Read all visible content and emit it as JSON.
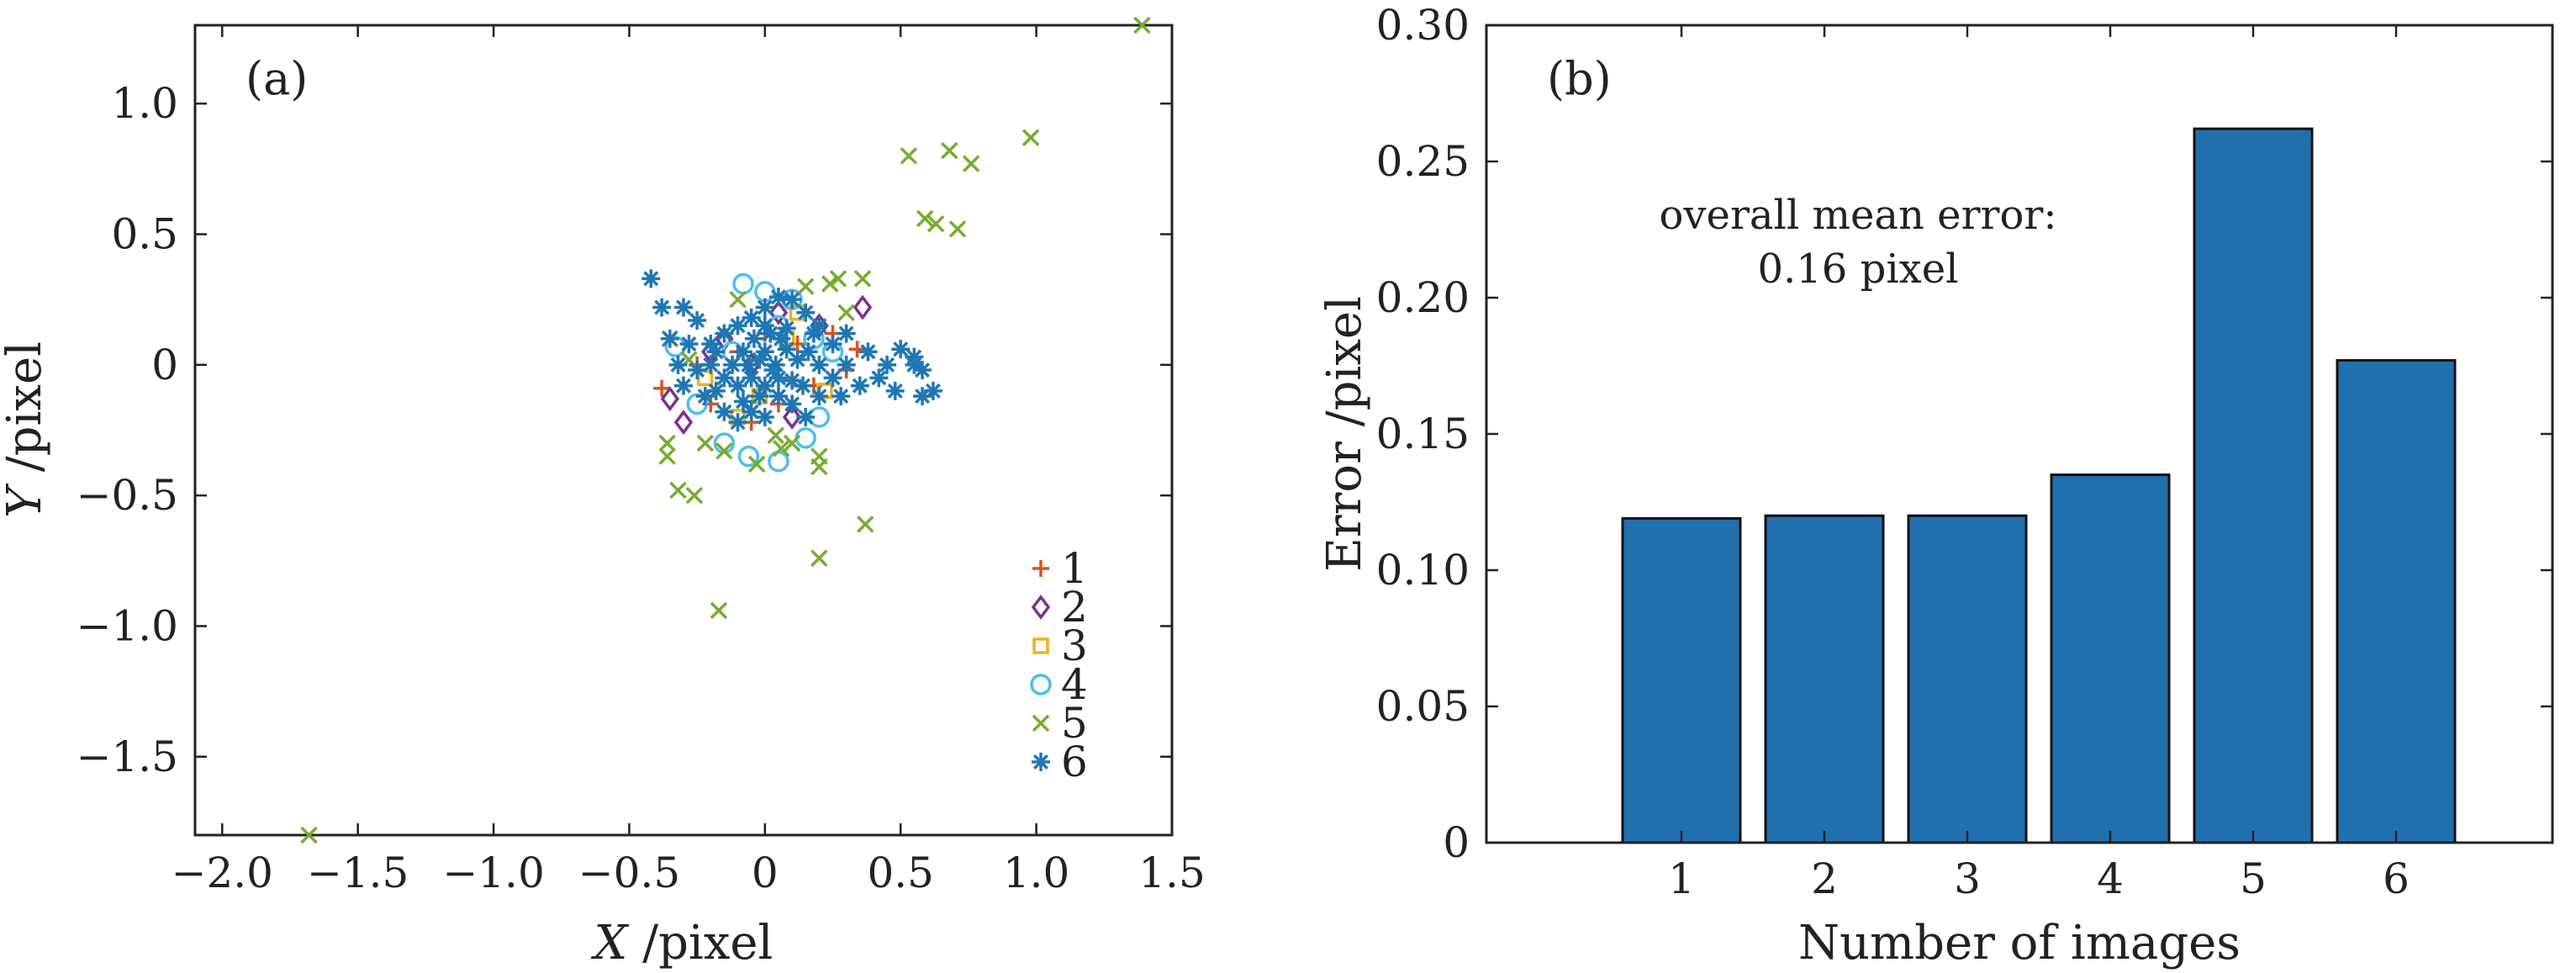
{
  "chart_data": [
    {
      "type": "scatter",
      "panel_label": "(a)",
      "xlabel_var": "X",
      "xlabel_unit": " /pixel",
      "ylabel_var": "Y",
      "ylabel_unit": " /pixel",
      "xlim": [
        -2.1,
        1.5
      ],
      "ylim": [
        -1.8,
        1.3
      ],
      "xticks": [
        -2.0,
        -1.5,
        -1.0,
        -0.5,
        0,
        0.5,
        1.0,
        1.5
      ],
      "xtick_labels": [
        "−2.0",
        "−1.5",
        "−1.0",
        "−0.5",
        "0",
        "0.5",
        "1.0",
        "1.5"
      ],
      "yticks": [
        1.0,
        0.5,
        0,
        -0.5,
        -1.0,
        -1.5
      ],
      "ytick_labels": [
        "1.0",
        "0.5",
        "0",
        "−0.5",
        "−1.0",
        "−1.5"
      ],
      "legend_position": "bottom-right",
      "series": [
        {
          "name": "1",
          "marker": "plus",
          "color": "#d95319",
          "points": [
            [
              -0.38,
              -0.09
            ],
            [
              -0.25,
              0.0
            ],
            [
              -0.1,
              0.05
            ],
            [
              0.05,
              -0.15
            ],
            [
              0.12,
              0.08
            ],
            [
              0.25,
              0.12
            ],
            [
              0.34,
              0.06
            ],
            [
              -0.05,
              -0.22
            ],
            [
              0.18,
              -0.08
            ],
            [
              -0.2,
              -0.15
            ],
            [
              0.0,
              0.12
            ],
            [
              0.3,
              -0.02
            ]
          ]
        },
        {
          "name": "2",
          "marker": "diamond",
          "color": "#7e2f8e",
          "points": [
            [
              0.36,
              0.22
            ],
            [
              -0.35,
              -0.13
            ],
            [
              -0.3,
              -0.22
            ],
            [
              -0.15,
              0.1
            ],
            [
              0.1,
              -0.2
            ],
            [
              0.2,
              0.15
            ],
            [
              -0.05,
              0.0
            ],
            [
              0.05,
              0.2
            ],
            [
              -0.2,
              0.05
            ]
          ]
        },
        {
          "name": "3",
          "marker": "square",
          "color": "#edb120",
          "points": [
            [
              -0.22,
              -0.05
            ],
            [
              -0.1,
              -0.2
            ],
            [
              0.08,
              0.1
            ],
            [
              0.22,
              -0.1
            ],
            [
              0.12,
              0.2
            ],
            [
              -0.02,
              -0.12
            ]
          ]
        },
        {
          "name": "4",
          "marker": "circle",
          "color": "#4dbeee",
          "points": [
            [
              -0.08,
              0.31
            ],
            [
              0.05,
              -0.37
            ],
            [
              -0.06,
              -0.35
            ],
            [
              0.15,
              -0.28
            ],
            [
              -0.33,
              0.07
            ],
            [
              0.0,
              0.28
            ],
            [
              0.2,
              -0.2
            ],
            [
              -0.15,
              -0.3
            ],
            [
              0.1,
              0.25
            ],
            [
              0.25,
              0.05
            ],
            [
              -0.25,
              -0.15
            ],
            [
              0.05,
              0.15
            ],
            [
              -0.12,
              0.05
            ],
            [
              0.18,
              0.1
            ]
          ]
        },
        {
          "name": "5",
          "marker": "x",
          "color": "#77ac30",
          "points": [
            [
              1.39,
              1.3
            ],
            [
              0.98,
              0.87
            ],
            [
              0.68,
              0.82
            ],
            [
              0.53,
              0.8
            ],
            [
              0.76,
              0.77
            ],
            [
              0.59,
              0.56
            ],
            [
              0.63,
              0.54
            ],
            [
              0.71,
              0.52
            ],
            [
              0.36,
              0.33
            ],
            [
              0.27,
              0.33
            ],
            [
              0.24,
              0.31
            ],
            [
              -0.36,
              -0.3
            ],
            [
              -0.36,
              -0.35
            ],
            [
              -0.32,
              -0.48
            ],
            [
              -0.26,
              -0.5
            ],
            [
              0.04,
              -0.27
            ],
            [
              0.06,
              -0.32
            ],
            [
              -0.03,
              -0.38
            ],
            [
              0.2,
              -0.35
            ],
            [
              0.2,
              -0.39
            ],
            [
              0.37,
              -0.61
            ],
            [
              0.2,
              -0.74
            ],
            [
              -0.17,
              -0.94
            ],
            [
              -1.68,
              -1.8
            ],
            [
              -0.22,
              -0.3
            ],
            [
              -0.15,
              -0.33
            ],
            [
              -0.28,
              0.02
            ],
            [
              0.15,
              0.3
            ],
            [
              -0.35,
              0.1
            ],
            [
              -0.1,
              0.25
            ],
            [
              0.3,
              0.2
            ],
            [
              0.1,
              -0.3
            ]
          ]
        },
        {
          "name": "6",
          "marker": "asterisk",
          "color": "#1f77b4",
          "points": [
            [
              -0.42,
              0.33
            ],
            [
              -0.38,
              0.22
            ],
            [
              -0.3,
              0.22
            ],
            [
              -0.25,
              0.17
            ],
            [
              -0.35,
              0.1
            ],
            [
              -0.28,
              0.08
            ],
            [
              -0.2,
              0.0
            ],
            [
              -0.3,
              -0.08
            ],
            [
              -0.22,
              -0.12
            ],
            [
              -0.15,
              -0.18
            ],
            [
              -0.1,
              -0.22
            ],
            [
              -0.05,
              -0.18
            ],
            [
              0.0,
              -0.2
            ],
            [
              0.05,
              -0.12
            ],
            [
              0.1,
              -0.15
            ],
            [
              0.15,
              -0.2
            ],
            [
              0.2,
              -0.12
            ],
            [
              0.25,
              -0.05
            ],
            [
              0.3,
              0.0
            ],
            [
              0.35,
              -0.08
            ],
            [
              0.42,
              -0.05
            ],
            [
              0.48,
              -0.1
            ],
            [
              0.5,
              0.06
            ],
            [
              0.55,
              0.03
            ],
            [
              0.58,
              -0.02
            ],
            [
              0.62,
              -0.1
            ],
            [
              0.58,
              -0.12
            ],
            [
              0.55,
              0.0
            ],
            [
              0.45,
              0.0
            ],
            [
              0.38,
              0.05
            ],
            [
              0.3,
              0.12
            ],
            [
              0.25,
              0.08
            ],
            [
              0.2,
              0.15
            ],
            [
              0.15,
              0.2
            ],
            [
              0.1,
              0.25
            ],
            [
              0.05,
              0.26
            ],
            [
              0.0,
              0.22
            ],
            [
              -0.05,
              0.18
            ],
            [
              -0.1,
              0.15
            ],
            [
              -0.15,
              0.12
            ],
            [
              -0.18,
              0.05
            ],
            [
              -0.12,
              0.0
            ],
            [
              -0.08,
              0.05
            ],
            [
              -0.04,
              0.1
            ],
            [
              0.0,
              0.05
            ],
            [
              0.04,
              0.0
            ],
            [
              0.08,
              0.06
            ],
            [
              0.12,
              0.02
            ],
            [
              0.16,
              0.05
            ],
            [
              0.2,
              0.0
            ],
            [
              0.1,
              -0.06
            ],
            [
              0.05,
              -0.05
            ],
            [
              0.0,
              -0.08
            ],
            [
              -0.05,
              -0.05
            ],
            [
              -0.1,
              -0.08
            ],
            [
              -0.15,
              -0.05
            ],
            [
              -0.2,
              0.08
            ],
            [
              -0.25,
              -0.02
            ],
            [
              0.02,
              0.12
            ],
            [
              -0.02,
              -0.12
            ],
            [
              0.08,
              0.14
            ],
            [
              -0.08,
              -0.14
            ],
            [
              0.14,
              -0.08
            ],
            [
              0.18,
              0.12
            ],
            [
              -0.18,
              -0.1
            ],
            [
              -0.02,
              0.02
            ],
            [
              0.03,
              -0.02
            ],
            [
              0.06,
              0.1
            ],
            [
              -0.06,
              0.0
            ],
            [
              0.28,
              -0.12
            ],
            [
              -0.32,
              0.0
            ],
            [
              0.0,
              0.15
            ]
          ]
        }
      ]
    },
    {
      "type": "bar",
      "panel_label": "(b)",
      "xlabel": "Number of images",
      "ylabel": "Error /pixel",
      "categories": [
        "1",
        "2",
        "3",
        "4",
        "5",
        "6"
      ],
      "values": [
        0.119,
        0.12,
        0.12,
        0.135,
        0.262,
        0.177
      ],
      "ylim": [
        0,
        0.3
      ],
      "yticks": [
        0,
        0.05,
        0.1,
        0.15,
        0.2,
        0.25,
        0.3
      ],
      "ytick_labels": [
        "0",
        "0.05",
        "0.10",
        "0.15",
        "0.20",
        "0.25",
        "0.30"
      ],
      "bar_color": "#1f70ad",
      "annotation_line1": "overall mean error:",
      "annotation_line2": "0.16 pixel"
    }
  ]
}
